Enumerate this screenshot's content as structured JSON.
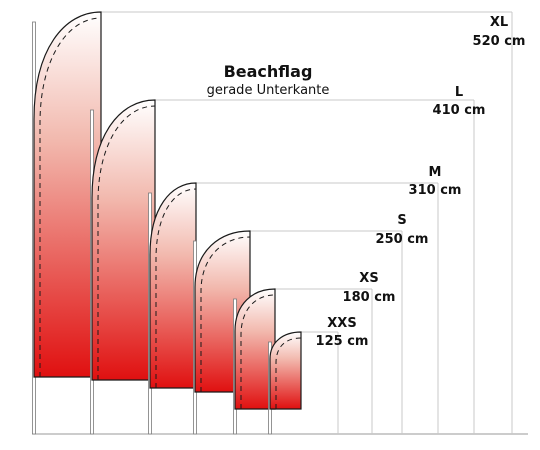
{
  "title": "Beachflag",
  "subtitle": "gerade Unterkante",
  "colors": {
    "flag_top": "#ffffff",
    "flag_bottom": "#e01010",
    "outline": "#1a1a1a",
    "guide_line": "#c8c8c8",
    "pole": "#7a7a7a"
  },
  "flags": [
    {
      "size": "XL",
      "height": "520 cm"
    },
    {
      "size": "L",
      "height": "410 cm"
    },
    {
      "size": "M",
      "height": "310 cm"
    },
    {
      "size": "S",
      "height": "250 cm"
    },
    {
      "size": "XS",
      "height": "180 cm"
    },
    {
      "size": "XXS",
      "height": "125 cm"
    }
  ]
}
